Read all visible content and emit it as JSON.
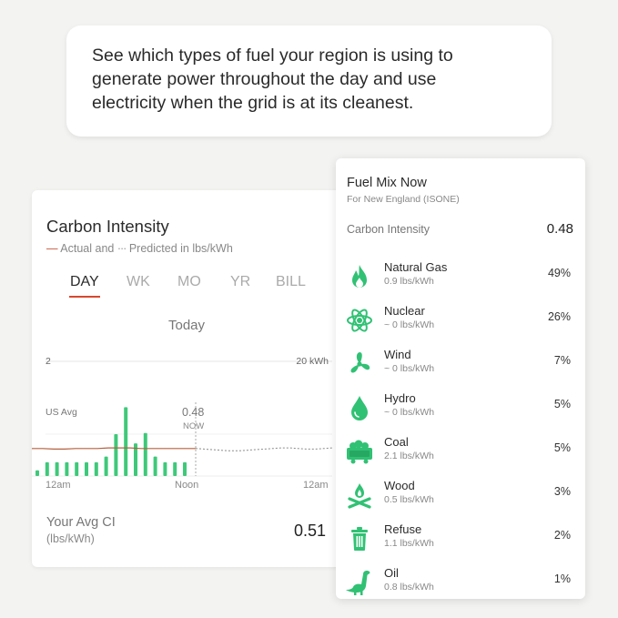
{
  "callout": {
    "line1": "See which types of fuel your region is using to",
    "line2": "generate power throughout the day and use",
    "line3": "electricity when the grid is at its cleanest."
  },
  "carbon_card": {
    "title": "Carbon Intensity",
    "legend_actual_mark": "—",
    "legend_actual": "Actual and",
    "legend_pred_mark": "···",
    "legend_pred": "Predicted in lbs/kWh",
    "tabs": [
      {
        "label": "DAY",
        "active": true
      },
      {
        "label": "WK",
        "active": false
      },
      {
        "label": "MO",
        "active": false
      },
      {
        "label": "YR",
        "active": false
      },
      {
        "label": "BILL",
        "active": false
      }
    ],
    "period_label": "Today",
    "avg_label": "Your Avg CI",
    "avg_unit": "(lbs/kWh)",
    "avg_value": "0.51"
  },
  "chart_data": {
    "type": "bar",
    "left_axis_label": "2",
    "right_axis_label": "20 kWh",
    "us_avg_label": "US Avg",
    "now_value": "0.48",
    "now_label": "NOW",
    "x_tick_labels": [
      "12am",
      "Noon",
      "12am"
    ],
    "usage_kwh": [
      1,
      2.4,
      2.4,
      2.4,
      2.4,
      2.4,
      2.4,
      3.4,
      7.3,
      12,
      5.7,
      7.5,
      3.4,
      2.4,
      2.4,
      2.4
    ],
    "usage_max": 20,
    "intensity_actual": [
      0.48,
      0.48,
      0.47,
      0.47,
      0.48,
      0.48,
      0.48,
      0.49,
      0.49,
      0.49,
      0.48,
      0.48,
      0.48,
      0.48,
      0.48,
      0.48
    ],
    "intensity_predicted": [
      0.48,
      0.47,
      0.46,
      0.45,
      0.44,
      0.44,
      0.45,
      0.46,
      0.47,
      0.48,
      0.49,
      0.49,
      0.48,
      0.47,
      0.47,
      0.48,
      0.49
    ],
    "intensity_max": 2,
    "colors": {
      "bars": "#3ec97a",
      "actual": "#b5603e",
      "predicted": "#8a8a8a",
      "now_line": "#aaaaaa"
    }
  },
  "fuel_mix": {
    "title": "Fuel Mix Now",
    "subtitle": "For New England (ISONE)",
    "ci_label": "Carbon Intensity",
    "ci_value": "0.48",
    "icon_color": "#31c174",
    "items": [
      {
        "name": "Natural Gas",
        "rate": "0.9 lbs/kWh",
        "pct": "49%",
        "icon": "flame-icon"
      },
      {
        "name": "Nuclear",
        "rate": "~ 0 lbs/kWh",
        "pct": "26%",
        "icon": "atom-icon"
      },
      {
        "name": "Wind",
        "rate": "~ 0 lbs/kWh",
        "pct": "7%",
        "icon": "wind-turbine-icon"
      },
      {
        "name": "Hydro",
        "rate": "~ 0 lbs/kWh",
        "pct": "5%",
        "icon": "water-drop-icon"
      },
      {
        "name": "Coal",
        "rate": "2.1 lbs/kWh",
        "pct": "5%",
        "icon": "coal-cart-icon"
      },
      {
        "name": "Wood",
        "rate": "0.5 lbs/kWh",
        "pct": "3%",
        "icon": "campfire-icon"
      },
      {
        "name": "Refuse",
        "rate": "1.1 lbs/kWh",
        "pct": "2%",
        "icon": "trash-can-icon"
      },
      {
        "name": "Oil",
        "rate": "0.8 lbs/kWh",
        "pct": "1%",
        "icon": "dinosaur-icon"
      }
    ]
  }
}
